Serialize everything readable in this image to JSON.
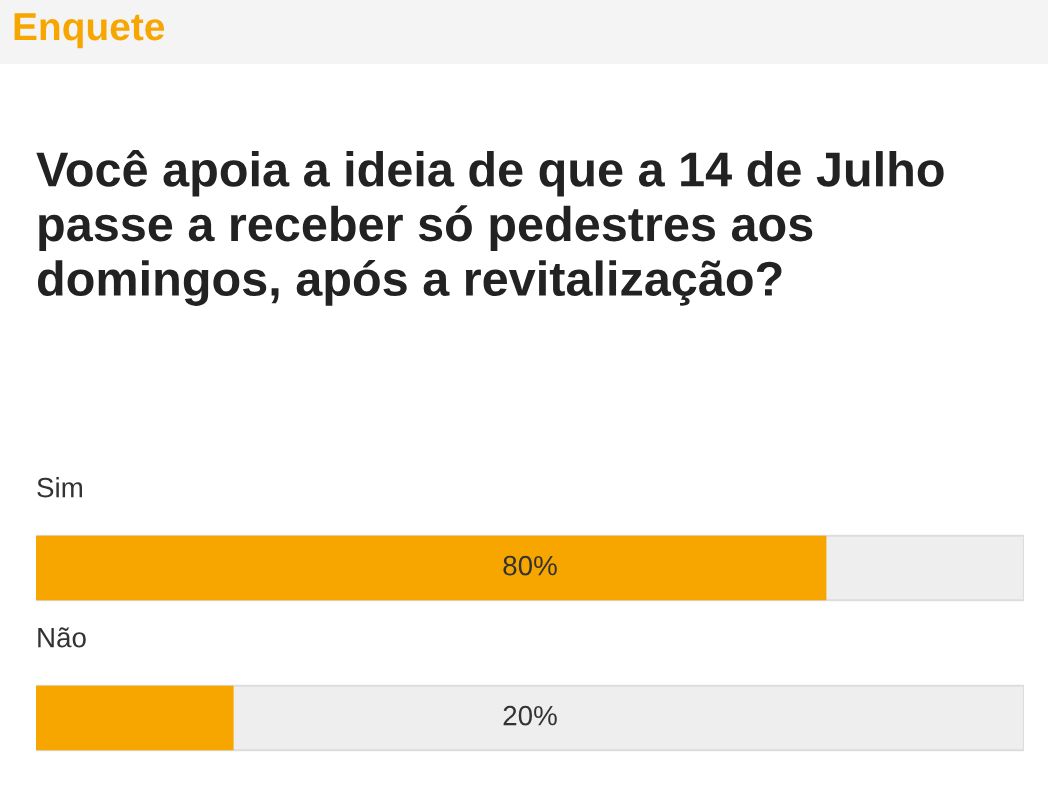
{
  "chart_data": {
    "type": "bar",
    "orientation": "horizontal",
    "title": "Enquete",
    "subtitle": "Você apoia a ideia de que a 14 de Julho passe a receber só pedestres aos domingos, após a revitalização?",
    "categories": [
      "Sim",
      "Não"
    ],
    "values": [
      80,
      20
    ],
    "value_labels": [
      "80%",
      "20%"
    ],
    "color": "#f7a600",
    "xlim": [
      0,
      100
    ]
  }
}
